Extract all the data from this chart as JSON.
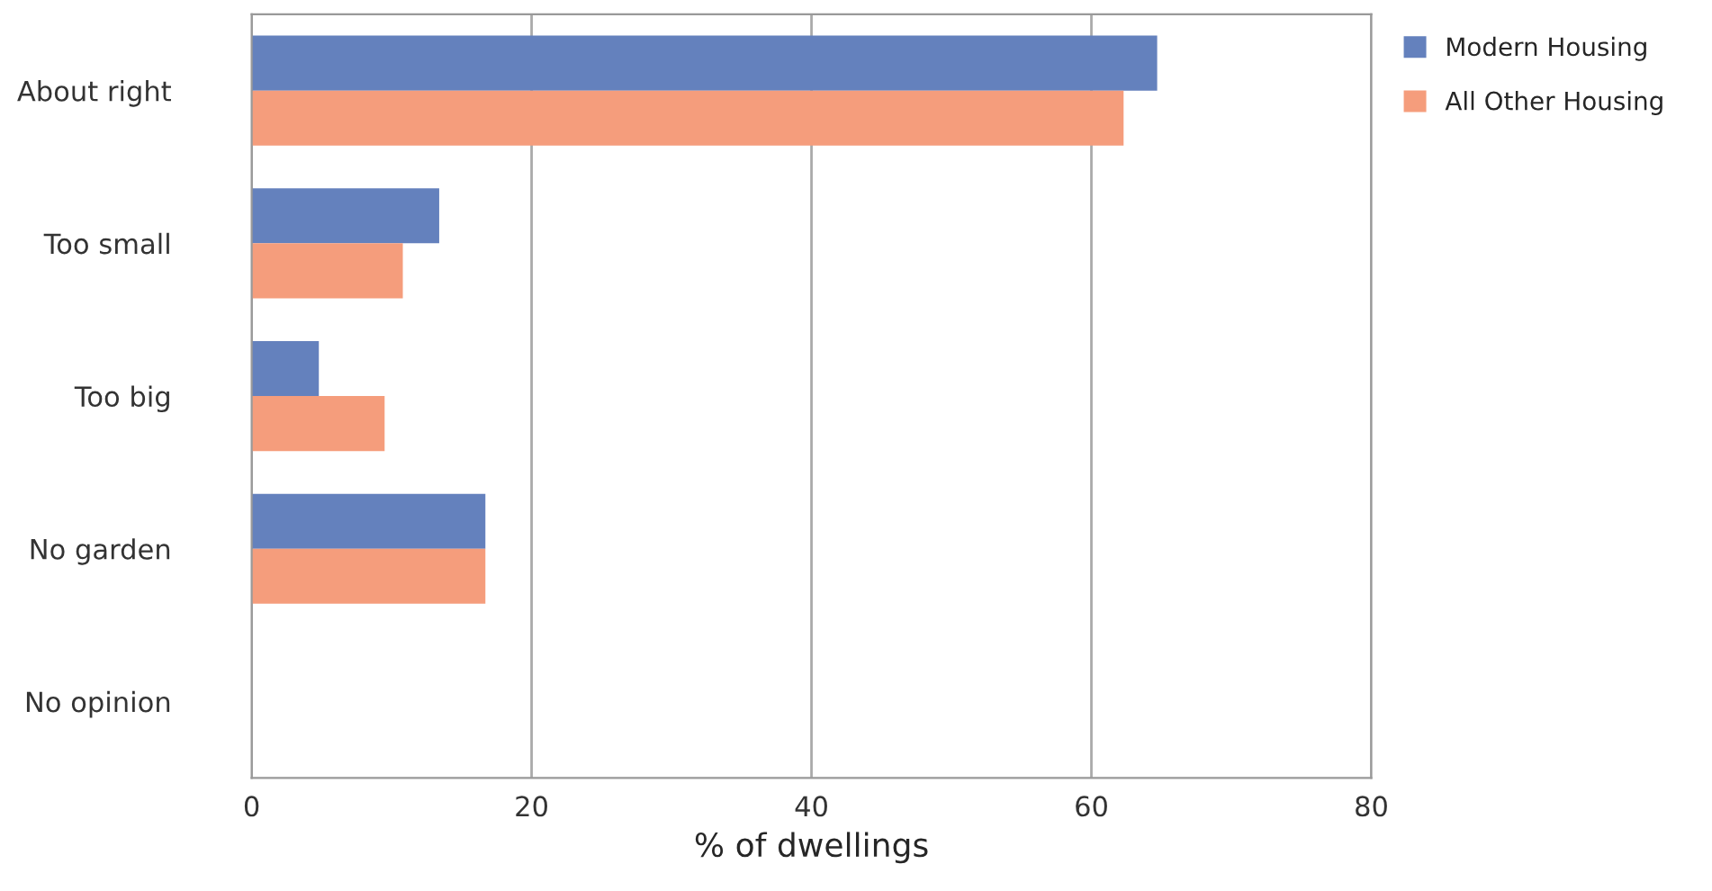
{
  "chart_data": {
    "type": "bar",
    "orientation": "horizontal",
    "categories": [
      "About right",
      "Too small",
      "Too big",
      "No garden",
      "No opinion"
    ],
    "series": [
      {
        "name": "Modern Housing",
        "color": "#6481bd",
        "values": [
          64.7,
          13.4,
          4.8,
          16.7,
          null
        ]
      },
      {
        "name": "All Other Housing",
        "color": "#f59d7c",
        "values": [
          62.3,
          10.8,
          9.5,
          16.7,
          null
        ]
      }
    ],
    "xlabel": "% of dwellings",
    "xlim": [
      0,
      80
    ],
    "xticks": [
      0,
      20,
      40,
      60,
      80
    ],
    "grid": "x",
    "legend": "top right"
  }
}
